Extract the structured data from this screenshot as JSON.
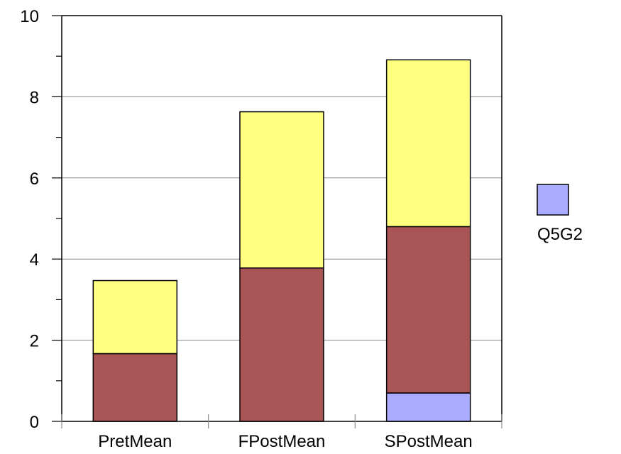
{
  "chart_data": {
    "type": "bar",
    "stacked": true,
    "title": "",
    "xlabel": "",
    "ylabel": "",
    "categories": [
      "PretMean",
      "FPostMean",
      "SPostMean"
    ],
    "ylim": [
      0,
      10
    ],
    "yticks": [
      "0",
      "2",
      "4",
      "6",
      "8",
      "10"
    ],
    "grid": true,
    "legend_position": "right",
    "series": [
      {
        "name": "Q5G2",
        "color": "#aaaaff",
        "values": [
          0,
          0,
          0.7
        ]
      },
      {
        "color": "#aa5555",
        "values": [
          1.67,
          3.78,
          4.1
        ]
      },
      {
        "color": "#ffff80",
        "values": [
          1.8,
          3.85,
          4.11
        ]
      }
    ]
  }
}
